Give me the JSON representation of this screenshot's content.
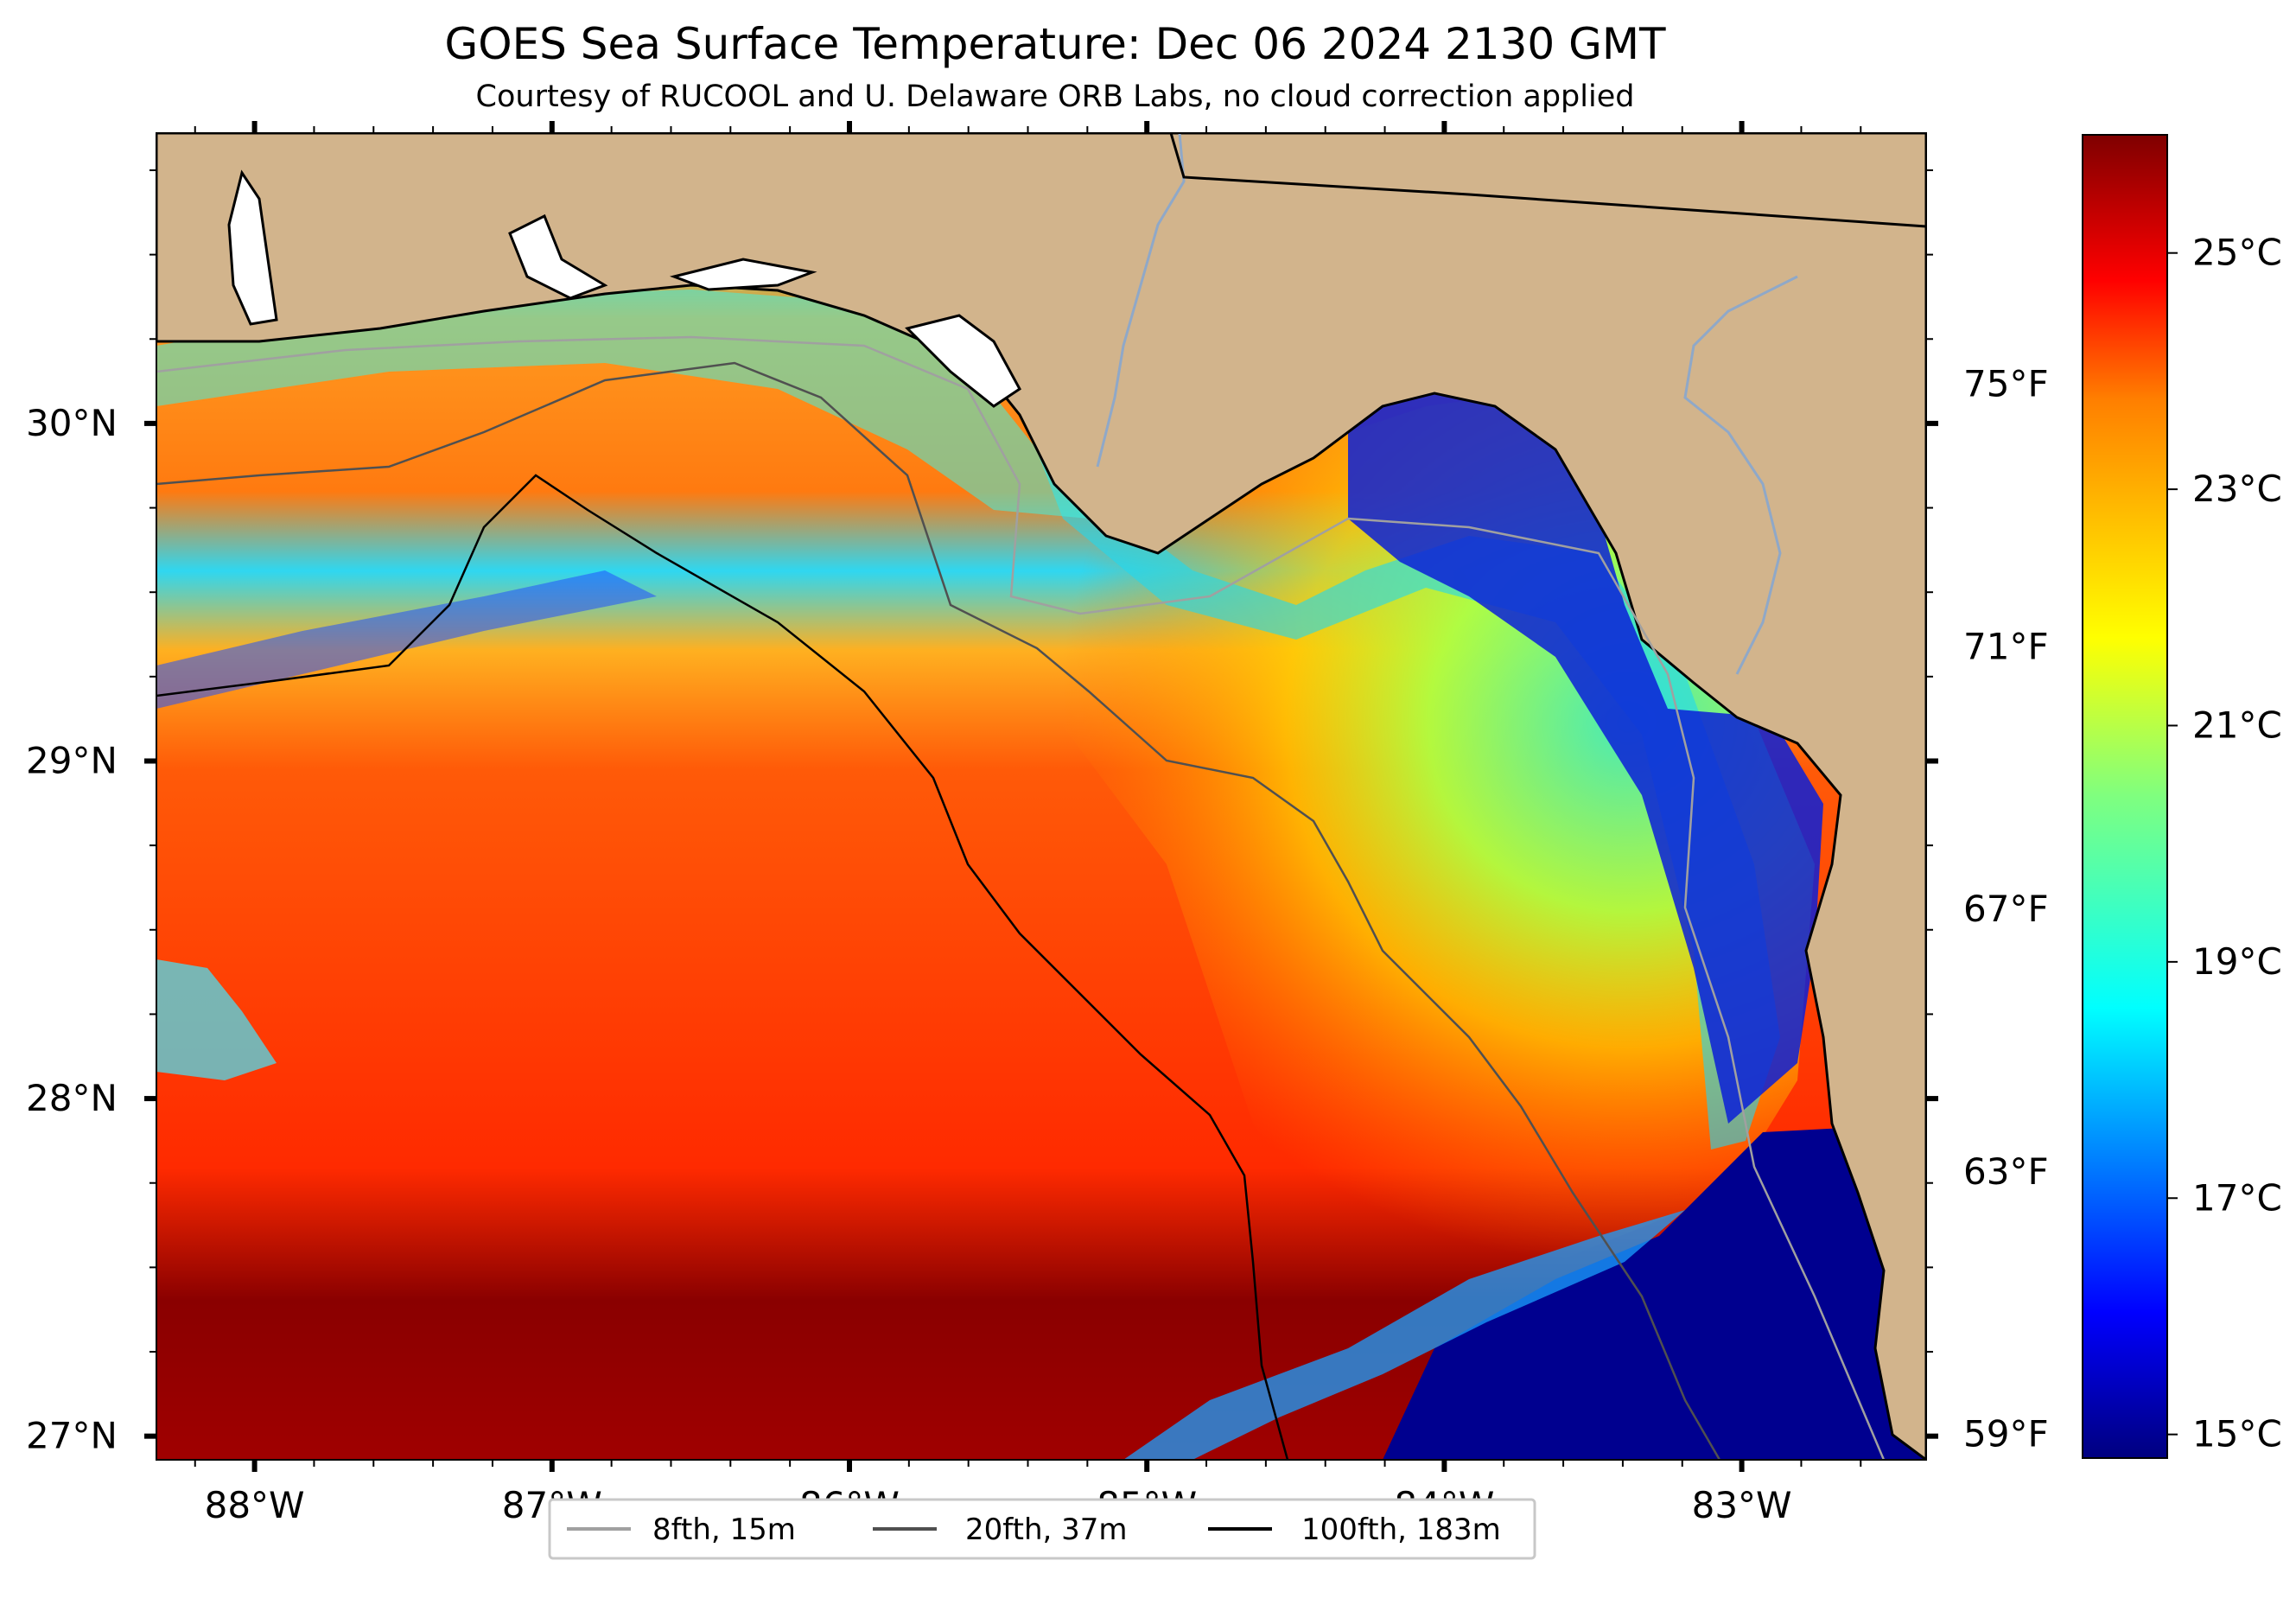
{
  "title": "GOES Sea Surface Temperature: Dec 06 2024 2130 GMT",
  "subtitle": "Courtesy of RUCOOL and U. Delaware ORB Labs, no cloud correction applied",
  "map": {
    "lon_range": [
      -88.33,
      -82.38
    ],
    "lat_range": [
      26.93,
      30.86
    ],
    "lon_ticks": [
      {
        "value": -88,
        "label": "88°W"
      },
      {
        "value": -87,
        "label": "87°W"
      },
      {
        "value": -86,
        "label": "86°W"
      },
      {
        "value": -85,
        "label": "85°W"
      },
      {
        "value": -84,
        "label": "84°W"
      },
      {
        "value": -83,
        "label": "83°W"
      }
    ],
    "lat_ticks": [
      {
        "value": 27,
        "label": "27°N"
      },
      {
        "value": 28,
        "label": "28°N"
      },
      {
        "value": 29,
        "label": "29°N"
      },
      {
        "value": 30,
        "label": "30°N"
      }
    ],
    "colors": {
      "land": "#d2b48c",
      "coast": "#000000",
      "rivers": "#8fa8c8"
    }
  },
  "colorbar": {
    "colormap": "jet",
    "range_c": [
      14.8,
      26.0
    ],
    "celsius_ticks": [
      {
        "value": 15,
        "label": "15°C"
      },
      {
        "value": 17,
        "label": "17°C"
      },
      {
        "value": 19,
        "label": "19°C"
      },
      {
        "value": 21,
        "label": "21°C"
      },
      {
        "value": 23,
        "label": "23°C"
      },
      {
        "value": 25,
        "label": "25°C"
      }
    ],
    "fahrenheit_ticks": [
      {
        "value": 59,
        "label": "59°F"
      },
      {
        "value": 63,
        "label": "63°F"
      },
      {
        "value": 67,
        "label": "67°F"
      },
      {
        "value": 71,
        "label": "71°F"
      },
      {
        "value": 75,
        "label": "75°F"
      }
    ]
  },
  "legend": {
    "items": [
      {
        "label": "8fth, 15m",
        "color": "#a0a0a0"
      },
      {
        "label": "20fth, 37m",
        "color": "#505050"
      },
      {
        "label": "100fth, 183m",
        "color": "#000000"
      }
    ]
  }
}
